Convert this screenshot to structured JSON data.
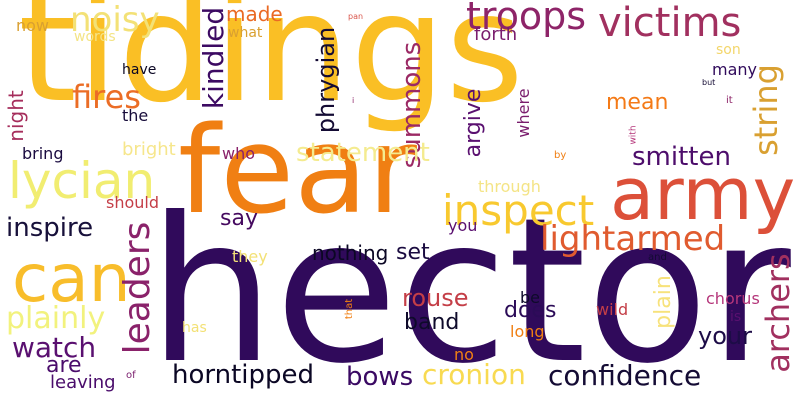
{
  "words": [
    {
      "text": "hector",
      "color": "#300A5B",
      "vertical": false
    },
    {
      "text": "tidings",
      "color": "#FABF25",
      "vertical": false
    },
    {
      "text": "fear",
      "color": "#F07F13",
      "vertical": false
    },
    {
      "text": "army",
      "color": "#DC5039",
      "vertical": false
    },
    {
      "text": "can",
      "color": "#F8BD2B",
      "vertical": false
    },
    {
      "text": "lycian",
      "color": "#F1ED71",
      "vertical": false
    },
    {
      "text": "inspect",
      "color": "#F8C92F",
      "vertical": false
    },
    {
      "text": "victims",
      "color": "#A1305F",
      "vertical": false
    },
    {
      "text": "troops",
      "color": "#8E2468",
      "vertical": false
    },
    {
      "text": "lightarmed",
      "color": "#E05B2F",
      "vertical": false
    },
    {
      "text": "leaders",
      "color": "#8A226A",
      "vertical": true
    },
    {
      "text": "archers",
      "color": "#A1305F",
      "vertical": true
    },
    {
      "text": "string",
      "color": "#D9A031",
      "vertical": true
    },
    {
      "text": "confidence",
      "color": "#140B34",
      "vertical": false
    },
    {
      "text": "horntipped",
      "color": "#0B0724",
      "vertical": false
    },
    {
      "text": "cronion",
      "color": "#F8DA51",
      "vertical": false
    },
    {
      "text": "bows",
      "color": "#3A0963",
      "vertical": false
    },
    {
      "text": "watch",
      "color": "#5A1070",
      "vertical": false
    },
    {
      "text": "plainly",
      "color": "#F2F27D",
      "vertical": false
    },
    {
      "text": "noisy",
      "color": "#F3E176",
      "vertical": false
    },
    {
      "text": "fires",
      "color": "#EB6D26",
      "vertical": false
    },
    {
      "text": "kindled",
      "color": "#3C0A62",
      "vertical": true
    },
    {
      "text": "made",
      "color": "#EA6A24",
      "vertical": false
    },
    {
      "text": "phrygian",
      "color": "#140B34",
      "vertical": true
    },
    {
      "text": "summons",
      "color": "#9B2964",
      "vertical": true
    },
    {
      "text": "statement",
      "color": "#F4EB8F",
      "vertical": false
    },
    {
      "text": "smitten",
      "color": "#4D0D6B",
      "vertical": false
    },
    {
      "text": "mean",
      "color": "#F47A17",
      "vertical": false
    },
    {
      "text": "argive",
      "color": "#5A1070",
      "vertical": true
    },
    {
      "text": "inspire",
      "color": "#17103A",
      "vertical": false
    },
    {
      "text": "rouse",
      "color": "#C43E47",
      "vertical": false
    },
    {
      "text": "does",
      "color": "#2B0B57",
      "vertical": false
    },
    {
      "text": "band",
      "color": "#0E0A2A",
      "vertical": false
    },
    {
      "text": "plain",
      "color": "#F7E27B",
      "vertical": true
    },
    {
      "text": "your",
      "color": "#1D0C47",
      "vertical": false
    },
    {
      "text": "night",
      "color": "#A62E5C",
      "vertical": true
    },
    {
      "text": "say",
      "color": "#45095F",
      "vertical": false
    },
    {
      "text": "set",
      "color": "#1A0B40",
      "vertical": false
    },
    {
      "text": "nothing",
      "color": "#0B0724",
      "vertical": false
    },
    {
      "text": "are",
      "color": "#4A0C6B",
      "vertical": false
    },
    {
      "text": "leaving",
      "color": "#4A0C6B",
      "vertical": false
    },
    {
      "text": "bright",
      "color": "#F6E68C",
      "vertical": false
    },
    {
      "text": "bring",
      "color": "#1A0B40",
      "vertical": false
    },
    {
      "text": "the",
      "color": "#170C3A",
      "vertical": false
    },
    {
      "text": "have",
      "color": "#0B0724",
      "vertical": false
    },
    {
      "text": "now",
      "color": "#D9A031",
      "vertical": false
    },
    {
      "text": "words",
      "color": "#F4E486",
      "vertical": false
    },
    {
      "text": "what",
      "color": "#D9A031",
      "vertical": false
    },
    {
      "text": "forth",
      "color": "#7A1D6D",
      "vertical": false
    },
    {
      "text": "son",
      "color": "#F3D66B",
      "vertical": false
    },
    {
      "text": "many",
      "color": "#300A5B",
      "vertical": false
    },
    {
      "text": "should",
      "color": "#C43E47",
      "vertical": false
    },
    {
      "text": "who",
      "color": "#8A226A",
      "vertical": false
    },
    {
      "text": "through",
      "color": "#F4E486",
      "vertical": false
    },
    {
      "text": "where",
      "color": "#7A1D6D",
      "vertical": true
    },
    {
      "text": "you",
      "color": "#5A1070",
      "vertical": false
    },
    {
      "text": "they",
      "color": "#F3E176",
      "vertical": false
    },
    {
      "text": "be",
      "color": "#0E0A2A",
      "vertical": false
    },
    {
      "text": "long",
      "color": "#F07F13",
      "vertical": false
    },
    {
      "text": "chorus",
      "color": "#B5367A",
      "vertical": false
    },
    {
      "text": "is",
      "color": "#5A1070",
      "vertical": false
    },
    {
      "text": "wild",
      "color": "#C43E47",
      "vertical": false
    },
    {
      "text": "has",
      "color": "#F3E176",
      "vertical": false
    },
    {
      "text": "no",
      "color": "#F07F13",
      "vertical": false
    },
    {
      "text": "of",
      "color": "#7A1D6D",
      "vertical": false
    },
    {
      "text": "pan",
      "color": "#D9564C",
      "vertical": false
    },
    {
      "text": "i",
      "color": "#8E2468",
      "vertical": false
    },
    {
      "text": "but",
      "color": "#140B34",
      "vertical": false
    },
    {
      "text": "it",
      "color": "#8E2468",
      "vertical": false
    },
    {
      "text": "with",
      "color": "#B5367A",
      "vertical": true
    },
    {
      "text": "by",
      "color": "#F07F13",
      "vertical": false
    },
    {
      "text": "and",
      "color": "#140B34",
      "vertical": false
    },
    {
      "text": "that",
      "color": "#F07F13",
      "vertical": true
    }
  ]
}
